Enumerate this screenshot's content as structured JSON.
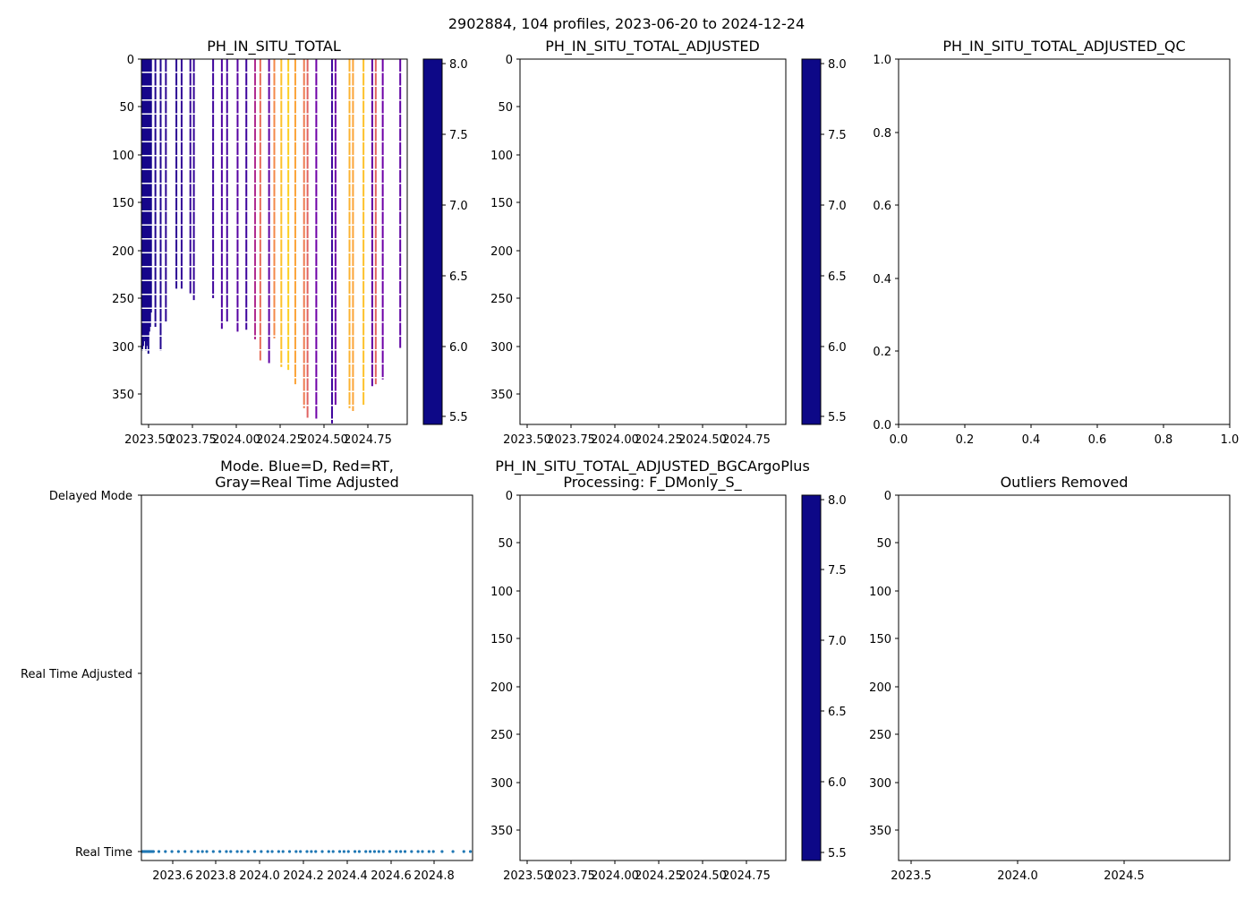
{
  "suptitle": "2902884, 104 profiles, 2023-06-20 to 2024-12-24",
  "colors": {
    "plasma": [
      "#0d0887",
      "#46039f",
      "#7201a8",
      "#9c179e",
      "#bd3786",
      "#d8576b",
      "#ed7953",
      "#fb9f3a",
      "#fdca26",
      "#f0f921"
    ],
    "mode_dots": "#1f77b4",
    "axis": "#000000"
  },
  "colorbar_ticks": [
    "5.5",
    "6.0",
    "6.5",
    "7.0",
    "7.5",
    "8.0"
  ],
  "panels": {
    "raw": {
      "title": "PH_IN_SITU_TOTAL",
      "x_ticks": [
        "2023.50",
        "2023.75",
        "2024.00",
        "2024.25",
        "2024.50",
        "2024.75"
      ],
      "y_ticks": [
        "0",
        "50",
        "100",
        "150",
        "200",
        "250",
        "300",
        "350"
      ]
    },
    "adjusted": {
      "title": "PH_IN_SITU_TOTAL_ADJUSTED",
      "x_ticks": [
        "2023.50",
        "2023.75",
        "2024.00",
        "2024.25",
        "2024.50",
        "2024.75"
      ],
      "y_ticks": [
        "0",
        "50",
        "100",
        "150",
        "200",
        "250",
        "300",
        "350"
      ]
    },
    "qc": {
      "title": "PH_IN_SITU_TOTAL_ADJUSTED_QC",
      "x_ticks": [
        "0.0",
        "0.2",
        "0.4",
        "0.6",
        "0.8",
        "1.0"
      ],
      "y_ticks": [
        "0.0",
        "0.2",
        "0.4",
        "0.6",
        "0.8",
        "1.0"
      ]
    },
    "mode": {
      "title_line1": "Mode. Blue=D, Red=RT,",
      "title_line2": "Gray=Real Time Adjusted",
      "y_ticks": [
        "Delayed Mode",
        "Real Time Adjusted",
        "Real Time"
      ],
      "x_ticks": [
        "2023.6",
        "2023.8",
        "2024.0",
        "2024.2",
        "2024.4",
        "2024.6",
        "2024.8"
      ]
    },
    "bgc": {
      "title_line1": "PH_IN_SITU_TOTAL_ADJUSTED_BGCArgoPlus",
      "title_line2": "Processing: F_DMonly_S_",
      "x_ticks": [
        "2023.50",
        "2023.75",
        "2024.00",
        "2024.25",
        "2024.50",
        "2024.75"
      ],
      "y_ticks": [
        "0",
        "50",
        "100",
        "150",
        "200",
        "250",
        "300",
        "350"
      ]
    },
    "outliers": {
      "title": "Outliers Removed",
      "x_ticks": [
        "2023.5",
        "2024.0",
        "2024.5"
      ],
      "y_ticks": [
        "0",
        "50",
        "100",
        "150",
        "200",
        "250",
        "300",
        "350"
      ]
    }
  },
  "chart_data": [
    {
      "type": "heatmap",
      "title": "PH_IN_SITU_TOTAL",
      "xlim": [
        2023.47,
        2024.99
      ],
      "ylim": [
        382,
        0
      ],
      "colorbar_range": [
        5.45,
        8.05
      ],
      "profiles": [
        {
          "t": 2023.475,
          "depth": 305,
          "ph": 8.0
        },
        {
          "t": 2023.48,
          "depth": 300,
          "ph": 8.0
        },
        {
          "t": 2023.485,
          "depth": 295,
          "ph": 8.0
        },
        {
          "t": 2023.49,
          "depth": 290,
          "ph": 8.0
        },
        {
          "t": 2023.495,
          "depth": 305,
          "ph": 8.0
        },
        {
          "t": 2023.5,
          "depth": 300,
          "ph": 8.0
        },
        {
          "t": 2023.505,
          "depth": 295,
          "ph": 8.0
        },
        {
          "t": 2023.51,
          "depth": 308,
          "ph": 8.0
        },
        {
          "t": 2023.515,
          "depth": 285,
          "ph": 8.0
        },
        {
          "t": 2023.52,
          "depth": 280,
          "ph": 8.0
        },
        {
          "t": 2023.525,
          "depth": 265,
          "ph": 8.0
        },
        {
          "t": 2023.55,
          "depth": 280,
          "ph": 7.95
        },
        {
          "t": 2023.58,
          "depth": 305,
          "ph": 7.95
        },
        {
          "t": 2023.61,
          "depth": 275,
          "ph": 7.9
        },
        {
          "t": 2023.67,
          "depth": 240,
          "ph": 7.9
        },
        {
          "t": 2023.7,
          "depth": 240,
          "ph": 7.85
        },
        {
          "t": 2023.75,
          "depth": 245,
          "ph": 7.85
        },
        {
          "t": 2023.77,
          "depth": 252,
          "ph": 7.85
        },
        {
          "t": 2023.88,
          "depth": 250,
          "ph": 7.8
        },
        {
          "t": 2023.93,
          "depth": 282,
          "ph": 7.7
        },
        {
          "t": 2023.96,
          "depth": 275,
          "ph": 7.75
        },
        {
          "t": 2024.02,
          "depth": 285,
          "ph": 7.65
        },
        {
          "t": 2024.07,
          "depth": 283,
          "ph": 7.8
        },
        {
          "t": 2024.12,
          "depth": 293,
          "ph": 7.0
        },
        {
          "t": 2024.15,
          "depth": 315,
          "ph": 6.4
        },
        {
          "t": 2024.2,
          "depth": 318,
          "ph": 7.6
        },
        {
          "t": 2024.23,
          "depth": 292,
          "ph": 6.2
        },
        {
          "t": 2024.27,
          "depth": 322,
          "ph": 5.8
        },
        {
          "t": 2024.31,
          "depth": 325,
          "ph": 5.7
        },
        {
          "t": 2024.35,
          "depth": 340,
          "ph": 6.0
        },
        {
          "t": 2024.4,
          "depth": 365,
          "ph": 6.3
        },
        {
          "t": 2024.42,
          "depth": 375,
          "ph": 6.5
        },
        {
          "t": 2024.47,
          "depth": 376,
          "ph": 7.5
        },
        {
          "t": 2024.56,
          "depth": 381,
          "ph": 7.8
        },
        {
          "t": 2024.58,
          "depth": 362,
          "ph": 7.5
        },
        {
          "t": 2024.66,
          "depth": 365,
          "ph": 5.9
        },
        {
          "t": 2024.68,
          "depth": 368,
          "ph": 6.0
        },
        {
          "t": 2024.74,
          "depth": 362,
          "ph": 5.8
        },
        {
          "t": 2024.79,
          "depth": 342,
          "ph": 7.6
        },
        {
          "t": 2024.81,
          "depth": 340,
          "ph": 6.5
        },
        {
          "t": 2024.85,
          "depth": 335,
          "ph": 7.5
        },
        {
          "t": 2024.95,
          "depth": 302,
          "ph": 7.6
        }
      ]
    },
    {
      "type": "heatmap",
      "title": "PH_IN_SITU_TOTAL_ADJUSTED",
      "xlim": [
        2023.47,
        2024.99
      ],
      "ylim": [
        382,
        0
      ],
      "profiles": []
    },
    {
      "type": "scatter",
      "title": "PH_IN_SITU_TOTAL_ADJUSTED_QC",
      "xlim": [
        0,
        1
      ],
      "ylim": [
        0,
        1
      ],
      "points": []
    },
    {
      "type": "scatter",
      "title": "Mode. Blue=D, Red=RT, Gray=Real Time Adjusted",
      "xlim": [
        2023.47,
        2024.99
      ],
      "y_categories": [
        "Real Time",
        "Real Time Adjusted",
        "Delayed Mode"
      ],
      "mode_level": 0,
      "times": [
        2023.475,
        2023.48,
        2023.485,
        2023.49,
        2023.495,
        2023.5,
        2023.505,
        2023.51,
        2023.515,
        2023.52,
        2023.525,
        2023.55,
        2023.58,
        2023.61,
        2023.64,
        2023.67,
        2023.7,
        2023.73,
        2023.75,
        2023.77,
        2023.8,
        2023.83,
        2023.86,
        2023.88,
        2023.91,
        2023.93,
        2023.96,
        2023.99,
        2024.02,
        2024.05,
        2024.07,
        2024.1,
        2024.12,
        2024.15,
        2024.18,
        2024.2,
        2024.23,
        2024.25,
        2024.27,
        2024.3,
        2024.33,
        2024.35,
        2024.38,
        2024.4,
        2024.42,
        2024.45,
        2024.47,
        2024.5,
        2024.52,
        2024.54,
        2024.56,
        2024.58,
        2024.61,
        2024.64,
        2024.66,
        2024.68,
        2024.71,
        2024.74,
        2024.76,
        2024.79,
        2024.81,
        2024.85,
        2024.9,
        2024.95,
        2024.98
      ]
    },
    {
      "type": "heatmap",
      "title": "PH_IN_SITU_TOTAL_ADJUSTED_BGCArgoPlus Processing: F_DMonly_S_",
      "xlim": [
        2023.47,
        2024.99
      ],
      "ylim": [
        382,
        0
      ],
      "profiles": []
    },
    {
      "type": "scatter",
      "title": "Outliers Removed",
      "xlim": [
        2023.37,
        2024.99
      ],
      "ylim": [
        382,
        0
      ],
      "points": []
    }
  ]
}
